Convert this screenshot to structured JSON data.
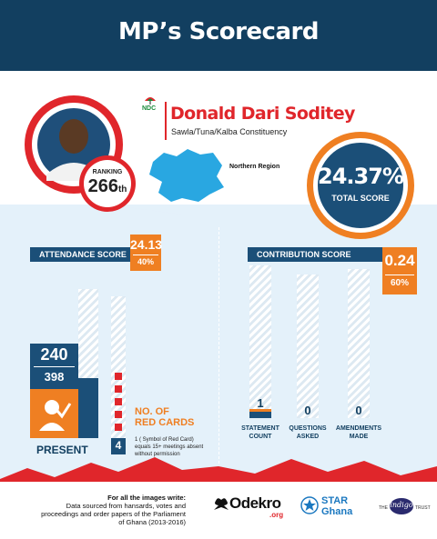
{
  "header": {
    "title": "MP’s Scorecard"
  },
  "mp": {
    "party": "NDC",
    "name": "Donald Dari Soditey",
    "constituency": "Sawla/Tuna/Kalba Constituency",
    "region": "Northern Region",
    "ranking_label": "RANKING",
    "ranking_value": "266",
    "ranking_suffix": "th"
  },
  "total": {
    "value": "24.37%",
    "label": "TOTAL SCORE",
    "fraction": 0.2437
  },
  "attendance": {
    "label": "ATTENDANCE SCORE",
    "score": "24.13",
    "weight": "40%",
    "present_count": "240",
    "total_count": "398",
    "present_label": "PRESENT",
    "present_fraction": 0.603,
    "red_cards_label_1": "NO. OF",
    "red_cards_label_2": "RED CARDS",
    "red_cards_count": "4",
    "red_cards_note_1": "1 ( Symbol of Red Card)",
    "red_cards_note_2": "equals 15+ meetings absent",
    "red_cards_note_3": "without permission"
  },
  "contribution": {
    "label": "CONTRIBUTION SCORE",
    "score": "0.24",
    "weight": "60%",
    "columns": [
      {
        "value": "1",
        "label_1": "STATEMENT",
        "label_2": "COUNT"
      },
      {
        "value": "0",
        "label_1": "QUESTIONS",
        "label_2": "ASKED"
      },
      {
        "value": "0",
        "label_1": "AMENDMENTS",
        "label_2": "MADE"
      }
    ]
  },
  "footer": {
    "source_title": "For all the images write:",
    "source_1": "Data sourced from hansards,  votes and",
    "source_2": "proceedings and order papers of the Parliament",
    "source_3": "of Ghana (2013-2016)",
    "logo_odekro": "Odekro",
    "logo_odekro_sub": ".org",
    "logo_star_1": "STAR",
    "logo_star_2": "Ghana",
    "logo_indigo": "indigo",
    "logo_the": "THE",
    "logo_trust": "TRUST"
  },
  "colors": {
    "navy": "#123f60",
    "orange": "#ef7f22",
    "red": "#e0262b",
    "light_blue": "#e4f1fa",
    "map_blue": "#29a7e1"
  }
}
